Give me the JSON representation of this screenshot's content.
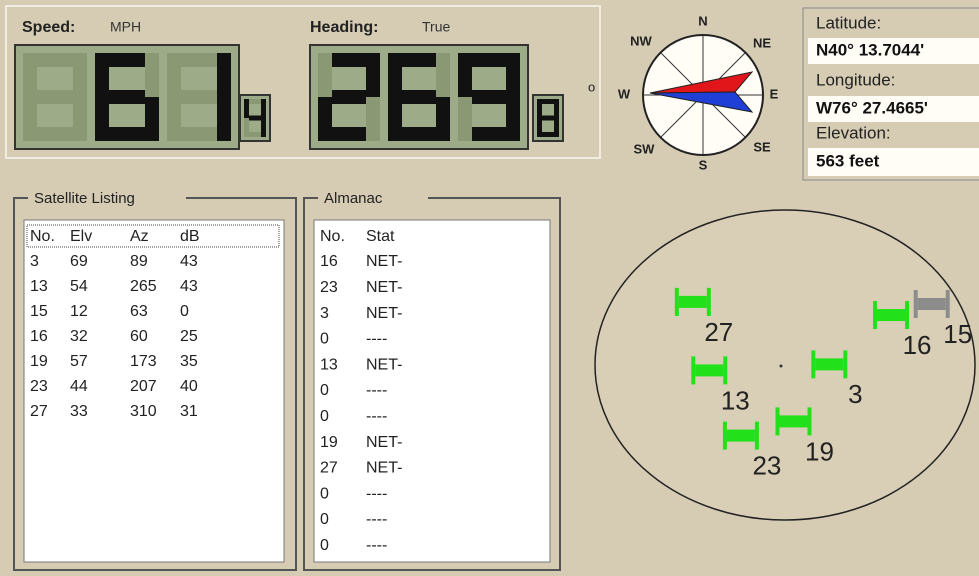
{
  "speed": {
    "label": "Speed:",
    "unit": "MPH",
    "digits": "61",
    "tenth": "4"
  },
  "heading": {
    "label": "Heading:",
    "unit": "True",
    "digits": "269",
    "tenth": "8",
    "degree": "o"
  },
  "compass": {
    "labels": [
      "N",
      "NE",
      "E",
      "SE",
      "S",
      "SW",
      "W",
      "NW"
    ]
  },
  "position": {
    "latitude_label": "Latitude:",
    "latitude": "N40° 13.7044'",
    "longitude_label": "Longitude:",
    "longitude": "W76° 27.4665'",
    "elevation_label": "Elevation:",
    "elevation": "563 feet"
  },
  "satellite_listing": {
    "title": "Satellite Listing",
    "header": [
      "No.",
      "Elv",
      "Az",
      "dB"
    ],
    "rows": [
      [
        3,
        69,
        89,
        43
      ],
      [
        13,
        54,
        265,
        43
      ],
      [
        15,
        12,
        63,
        0
      ],
      [
        16,
        32,
        60,
        25
      ],
      [
        19,
        57,
        173,
        35
      ],
      [
        23,
        44,
        207,
        40
      ],
      [
        27,
        33,
        310,
        31
      ]
    ]
  },
  "almanac": {
    "title": "Almanac",
    "header": [
      "No.",
      "Stat"
    ],
    "rows": [
      [
        16,
        "NET-"
      ],
      [
        23,
        "NET-"
      ],
      [
        3,
        "NET-"
      ],
      [
        0,
        "----"
      ],
      [
        13,
        "NET-"
      ],
      [
        0,
        "----"
      ],
      [
        0,
        "----"
      ],
      [
        19,
        "NET-"
      ],
      [
        27,
        "NET-"
      ],
      [
        0,
        "----"
      ],
      [
        0,
        "----"
      ],
      [
        0,
        "----"
      ]
    ]
  }
}
